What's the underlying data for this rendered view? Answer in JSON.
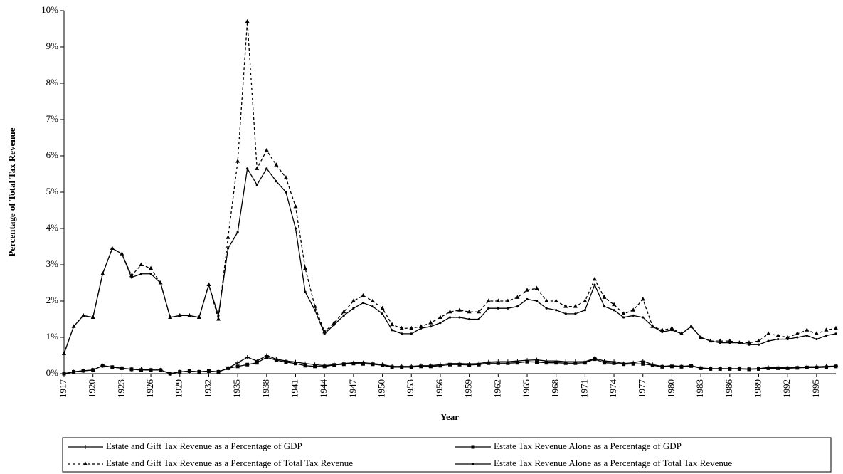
{
  "chart_data": {
    "type": "line",
    "x_label": "Year",
    "y_label": "Percentage of Total Tax Revenue",
    "x": [
      1917,
      1918,
      1919,
      1920,
      1921,
      1922,
      1923,
      1924,
      1925,
      1926,
      1927,
      1928,
      1929,
      1930,
      1931,
      1932,
      1933,
      1934,
      1935,
      1936,
      1937,
      1938,
      1939,
      1940,
      1941,
      1942,
      1943,
      1944,
      1945,
      1946,
      1947,
      1948,
      1949,
      1950,
      1951,
      1952,
      1953,
      1954,
      1955,
      1956,
      1957,
      1958,
      1959,
      1960,
      1961,
      1962,
      1963,
      1964,
      1965,
      1966,
      1967,
      1968,
      1969,
      1970,
      1971,
      1972,
      1973,
      1974,
      1975,
      1976,
      1977,
      1978,
      1979,
      1980,
      1981,
      1982,
      1983,
      1984,
      1985,
      1986,
      1987,
      1988,
      1989,
      1990,
      1991,
      1992,
      1993,
      1994,
      1995,
      1996,
      1997
    ],
    "xlim": [
      1917,
      1997
    ],
    "xticks": [
      1917,
      1920,
      1923,
      1926,
      1929,
      1932,
      1935,
      1938,
      1941,
      1944,
      1947,
      1950,
      1953,
      1956,
      1959,
      1962,
      1965,
      1968,
      1971,
      1974,
      1977,
      1980,
      1983,
      1986,
      1989,
      1992,
      1995
    ],
    "ylim": [
      0,
      10
    ],
    "yticks": [
      {
        "value": 0,
        "label": "0%"
      },
      {
        "value": 1,
        "label": "1%"
      },
      {
        "value": 2,
        "label": "2%"
      },
      {
        "value": 3,
        "label": "3%"
      },
      {
        "value": 4,
        "label": "4%"
      },
      {
        "value": 5,
        "label": "5%"
      },
      {
        "value": 6,
        "label": "6%"
      },
      {
        "value": 7,
        "label": "7%"
      },
      {
        "value": 8,
        "label": "8%"
      },
      {
        "value": 9,
        "label": "9%"
      },
      {
        "value": 10,
        "label": "10%"
      }
    ],
    "legend": "bottom",
    "series": [
      {
        "name": "Estate and Gift Tax Revenue as a Percentage of GDP",
        "color": "#000000",
        "marker": "plus",
        "dash": false,
        "values": [
          0,
          0.05,
          0.08,
          0.1,
          0.22,
          0.18,
          0.15,
          0.12,
          0.12,
          0.1,
          0.1,
          0,
          0.05,
          0.07,
          0.05,
          0.07,
          0.05,
          0.15,
          0.3,
          0.45,
          0.35,
          0.5,
          0.4,
          0.35,
          0.32,
          0.28,
          0.25,
          0.22,
          0.25,
          0.28,
          0.3,
          0.3,
          0.28,
          0.25,
          0.2,
          0.2,
          0.2,
          0.22,
          0.22,
          0.25,
          0.28,
          0.28,
          0.27,
          0.28,
          0.32,
          0.33,
          0.33,
          0.35,
          0.37,
          0.38,
          0.35,
          0.35,
          0.33,
          0.33,
          0.33,
          0.42,
          0.35,
          0.33,
          0.28,
          0.3,
          0.35,
          0.25,
          0.2,
          0.22,
          0.2,
          0.22,
          0.16,
          0.14,
          0.14,
          0.14,
          0.14,
          0.13,
          0.14,
          0.17,
          0.17,
          0.16,
          0.17,
          0.19,
          0.19,
          0.2,
          0.21
        ]
      },
      {
        "name": "Estate Tax Revenue Alone as a Percentage of GDP",
        "color": "#000000",
        "marker": "square",
        "dash": false,
        "values": [
          0,
          0.05,
          0.08,
          0.1,
          0.22,
          0.18,
          0.15,
          0.12,
          0.1,
          0.1,
          0.1,
          0,
          0.05,
          0.07,
          0.05,
          0.07,
          0.05,
          0.15,
          0.2,
          0.25,
          0.3,
          0.45,
          0.37,
          0.32,
          0.28,
          0.22,
          0.2,
          0.2,
          0.24,
          0.26,
          0.28,
          0.27,
          0.26,
          0.23,
          0.18,
          0.18,
          0.18,
          0.2,
          0.2,
          0.22,
          0.25,
          0.25,
          0.24,
          0.25,
          0.29,
          0.29,
          0.29,
          0.3,
          0.33,
          0.32,
          0.3,
          0.3,
          0.29,
          0.29,
          0.3,
          0.4,
          0.3,
          0.29,
          0.26,
          0.27,
          0.27,
          0.23,
          0.19,
          0.2,
          0.19,
          0.21,
          0.15,
          0.13,
          0.13,
          0.13,
          0.13,
          0.12,
          0.13,
          0.15,
          0.15,
          0.15,
          0.16,
          0.17,
          0.17,
          0.18,
          0.2
        ]
      },
      {
        "name": "Estate and Gift Tax Revenue as a Percentage of Total Tax Revenue",
        "color": "#000000",
        "marker": "triangle",
        "dash": true,
        "values": [
          0.55,
          1.3,
          1.6,
          1.55,
          2.75,
          3.45,
          3.3,
          2.7,
          3.0,
          2.9,
          2.5,
          1.55,
          1.6,
          1.6,
          1.55,
          2.45,
          1.5,
          3.75,
          5.85,
          9.7,
          5.65,
          6.15,
          5.75,
          5.4,
          4.6,
          2.9,
          1.85,
          1.15,
          1.4,
          1.7,
          2.0,
          2.15,
          2.0,
          1.8,
          1.35,
          1.25,
          1.25,
          1.3,
          1.4,
          1.55,
          1.7,
          1.75,
          1.7,
          1.7,
          2.0,
          2.0,
          2.0,
          2.1,
          2.3,
          2.35,
          2.0,
          2.0,
          1.85,
          1.85,
          2.0,
          2.6,
          2.1,
          1.9,
          1.65,
          1.75,
          2.05,
          1.3,
          1.2,
          1.25,
          1.1,
          1.3,
          1.0,
          0.9,
          0.9,
          0.9,
          0.85,
          0.85,
          0.9,
          1.1,
          1.05,
          1.0,
          1.1,
          1.2,
          1.1,
          1.2,
          1.25
        ]
      },
      {
        "name": "Estate Tax Revenue Alone as a Percentage of Total Tax Revenue",
        "color": "#000000",
        "marker": "dot",
        "dash": false,
        "values": [
          0.55,
          1.3,
          1.6,
          1.55,
          2.75,
          3.45,
          3.3,
          2.65,
          2.75,
          2.75,
          2.5,
          1.55,
          1.6,
          1.6,
          1.55,
          2.45,
          1.6,
          3.45,
          3.9,
          5.65,
          5.2,
          5.65,
          5.3,
          5.0,
          4.0,
          2.25,
          1.75,
          1.1,
          1.35,
          1.6,
          1.8,
          1.95,
          1.85,
          1.65,
          1.2,
          1.1,
          1.1,
          1.25,
          1.3,
          1.4,
          1.55,
          1.55,
          1.5,
          1.5,
          1.8,
          1.8,
          1.8,
          1.85,
          2.05,
          2.0,
          1.8,
          1.75,
          1.65,
          1.65,
          1.75,
          2.45,
          1.85,
          1.75,
          1.55,
          1.6,
          1.55,
          1.3,
          1.15,
          1.2,
          1.1,
          1.3,
          1.0,
          0.9,
          0.85,
          0.85,
          0.85,
          0.8,
          0.8,
          0.9,
          0.95,
          0.95,
          1.0,
          1.05,
          0.95,
          1.05,
          1.1
        ]
      }
    ]
  }
}
